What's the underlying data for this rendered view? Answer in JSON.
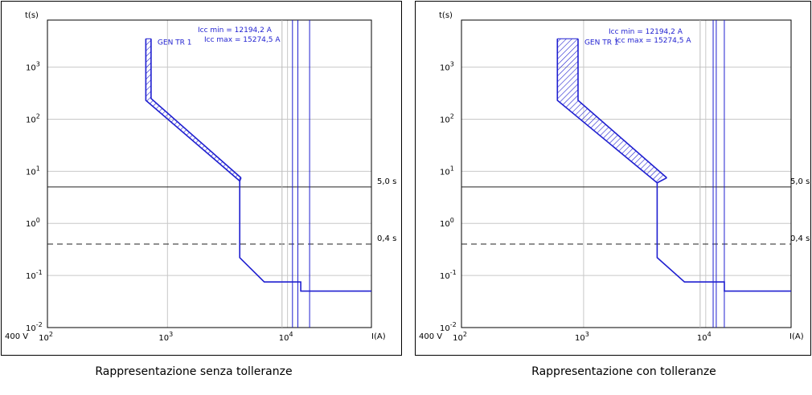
{
  "chart_data": [
    {
      "type": "line",
      "caption": "Rappresentazione senza tolleranze",
      "xlabel": "I(A)",
      "ylabel": "t(s)",
      "voltage_label": "400 V",
      "xscale": "log",
      "yscale": "log",
      "xlim": [
        100,
        50000
      ],
      "ylim": [
        0.01,
        8000
      ],
      "x_ticks": [
        {
          "base": "10",
          "exp": "2",
          "value": 100
        },
        {
          "base": "10",
          "exp": "3",
          "value": 1000
        },
        {
          "base": "10",
          "exp": "4",
          "value": 10000
        }
      ],
      "y_ticks": [
        {
          "base": "10",
          "exp": "-2",
          "value": 0.01
        },
        {
          "base": "10",
          "exp": "-1",
          "value": 0.1
        },
        {
          "base": "10",
          "exp": "0",
          "value": 1
        },
        {
          "base": "10",
          "exp": "1",
          "value": 10
        },
        {
          "base": "10",
          "exp": "2",
          "value": 100
        },
        {
          "base": "10",
          "exp": "3",
          "value": 1000
        }
      ],
      "grid": true,
      "series": [
        {
          "name": "GEN TR 1",
          "color": "#1f1fd0",
          "band": true,
          "lower": [
            [
              660,
              3500
            ],
            [
              660,
              230
            ],
            [
              4000,
              6.5
            ],
            [
              4000,
              0.22
            ],
            [
              6400,
              0.075
            ],
            [
              12900,
              0.075
            ],
            [
              12900,
              0.05
            ],
            [
              50000,
              0.05
            ]
          ],
          "upper": [
            [
              730,
              3500
            ],
            [
              730,
              250
            ],
            [
              4100,
              7.5
            ]
          ]
        }
      ],
      "vertical_lines": [
        {
          "x": 9000,
          "color": "#bbbbbb"
        },
        {
          "x": 11000,
          "color": "#1f1fd0"
        },
        {
          "x": 12194.2,
          "color": "#1f1fd0"
        },
        {
          "x": 15274.5,
          "color": "#1f1fd0"
        }
      ],
      "horizontal_lines": [
        {
          "y": 5.0,
          "style": "solid",
          "label": "5,0 s"
        },
        {
          "y": 0.4,
          "style": "dashed",
          "label": "0,4 s"
        }
      ],
      "annotations": [
        "Icc min = 12194,2 A",
        "Icc max = 15274,5 A"
      ]
    },
    {
      "type": "line",
      "caption": "Rappresentazione con tolleranze",
      "xlabel": "I(A)",
      "ylabel": "t(s)",
      "voltage_label": "400 V",
      "xscale": "log",
      "yscale": "log",
      "xlim": [
        100,
        50000
      ],
      "ylim": [
        0.01,
        8000
      ],
      "x_ticks": [
        {
          "base": "10",
          "exp": "2",
          "value": 100
        },
        {
          "base": "10",
          "exp": "3",
          "value": 1000
        },
        {
          "base": "10",
          "exp": "4",
          "value": 10000
        }
      ],
      "y_ticks": [
        {
          "base": "10",
          "exp": "-2",
          "value": 0.01
        },
        {
          "base": "10",
          "exp": "-1",
          "value": 0.1
        },
        {
          "base": "10",
          "exp": "0",
          "value": 1
        },
        {
          "base": "10",
          "exp": "1",
          "value": 10
        },
        {
          "base": "10",
          "exp": "2",
          "value": 100
        },
        {
          "base": "10",
          "exp": "3",
          "value": 1000
        }
      ],
      "grid": true,
      "series": [
        {
          "name": "GEN TR 1",
          "color": "#1f1fd0",
          "band": true,
          "lower": [
            [
              610,
              3500
            ],
            [
              610,
              230
            ],
            [
              4000,
              6
            ],
            [
              4000,
              0.22
            ],
            [
              6700,
              0.075
            ],
            [
              14200,
              0.075
            ],
            [
              14200,
              0.05
            ],
            [
              50000,
              0.05
            ]
          ],
          "upper": [
            [
              900,
              3500
            ],
            [
              900,
              230
            ],
            [
              4800,
              7.5
            ]
          ]
        }
      ],
      "vertical_lines": [
        {
          "x": 9000,
          "color": "#bbbbbb"
        },
        {
          "x": 11500,
          "color": "#1f1fd0"
        },
        {
          "x": 12194.2,
          "color": "#1f1fd0"
        },
        {
          "x": 14200,
          "color": "#1f1fd0"
        }
      ],
      "horizontal_lines": [
        {
          "y": 5.0,
          "style": "solid",
          "label": "5,0 s"
        },
        {
          "y": 0.4,
          "style": "dashed",
          "label": "0,4 s"
        }
      ],
      "annotations": [
        "Icc min = 12194,2 A",
        "Icc max = 15274,5 A"
      ]
    }
  ]
}
